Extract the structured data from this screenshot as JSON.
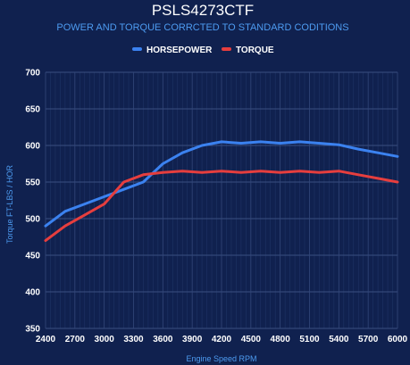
{
  "chart_data": {
    "type": "line",
    "title": "PSLS4273CTF",
    "subtitle": "POWER AND TORQUE CORRCTED TO STANDARD CODITIONS",
    "xlabel": "Engine Speed RPM",
    "ylabel": "Torque FT-LBS / HOR",
    "xlim": [
      2400,
      6000
    ],
    "ylim": [
      350,
      700
    ],
    "x_ticks": [
      "2400",
      "2700",
      "3000",
      "3300",
      "3600",
      "3900",
      "4200",
      "4500",
      "4800",
      "5100",
      "5400",
      "5700",
      "6000"
    ],
    "y_ticks": [
      "350",
      "400",
      "450",
      "500",
      "550",
      "600",
      "650",
      "700"
    ],
    "grid": true,
    "legend_position": "top",
    "background_color": "#10214f",
    "series": [
      {
        "name": "HORSEPOWER",
        "color": "#3b82f0",
        "x": [
          2400,
          2600,
          2800,
          3000,
          3200,
          3400,
          3600,
          3800,
          4000,
          4200,
          4400,
          4600,
          4800,
          5000,
          5200,
          5400,
          5600,
          5800,
          6000
        ],
        "y": [
          490,
          510,
          520,
          530,
          540,
          550,
          575,
          590,
          600,
          605,
          603,
          605,
          603,
          605,
          603,
          601,
          595,
          590,
          585
        ]
      },
      {
        "name": "TORQUE",
        "color": "#e63e3e",
        "x": [
          2400,
          2600,
          2800,
          3000,
          3200,
          3400,
          3600,
          3800,
          4000,
          4200,
          4400,
          4600,
          4800,
          5000,
          5200,
          5400,
          5600,
          5800,
          6000
        ],
        "y": [
          470,
          490,
          505,
          520,
          550,
          560,
          563,
          565,
          563,
          565,
          563,
          565,
          563,
          565,
          563,
          565,
          560,
          555,
          550
        ]
      }
    ]
  }
}
